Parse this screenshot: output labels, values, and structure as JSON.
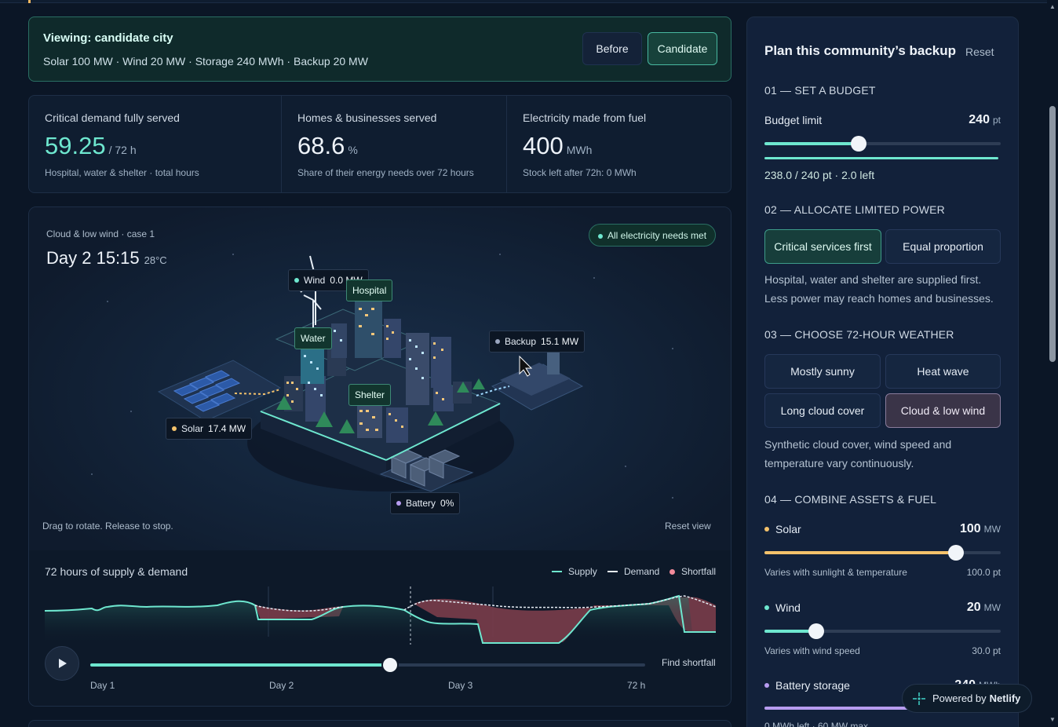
{
  "banner": {
    "title": "Viewing: candidate city",
    "summary": "Solar 100 MW · Wind 20 MW · Storage 240 MWh · Backup 20 MW",
    "before_label": "Before",
    "candidate_label": "Candidate"
  },
  "stats": [
    {
      "label": "Critical demand fully served",
      "value": "59.25",
      "unit": "/ 72 h",
      "note": "Hospital, water & shelter · total hours"
    },
    {
      "label": "Homes & businesses served",
      "value": "68.6",
      "unit": "%",
      "note": "Share of their energy needs over 72 hours"
    },
    {
      "label": "Electricity made from fuel",
      "value": "400",
      "unit": "MWh",
      "note": "Stock left after 72h: 0 MWh"
    }
  ],
  "scene": {
    "case_label": "Cloud & low wind · case 1",
    "day_time": "Day 2 15:15",
    "temperature": "28°C",
    "status_badge": "All electricity needs met",
    "drag_hint": "Drag to rotate. Release to stop.",
    "reset_view": "Reset view",
    "tags": {
      "wind": {
        "label": "Wind",
        "value": "0.0 MW"
      },
      "hospital": "Hospital",
      "water": "Water",
      "shelter": "Shelter",
      "backup": {
        "label": "Backup",
        "value": "15.1 MW"
      },
      "solar": {
        "label": "Solar",
        "value": "17.4 MW"
      },
      "battery": {
        "label": "Battery",
        "value": "0%"
      }
    }
  },
  "timeline": {
    "title": "72 hours of supply & demand",
    "legend": {
      "supply": "Supply",
      "demand": "Demand",
      "shortfall": "Shortfall"
    },
    "find_shortfall": "Find shortfall",
    "ticks": [
      "Day 1",
      "Day 2",
      "Day 3",
      "72 h"
    ],
    "progress": 0.54
  },
  "panel": {
    "title": "Plan this community’s backup",
    "reset": "Reset",
    "step1": "01 — SET A BUDGET",
    "budget_label": "Budget limit",
    "budget_value": "240",
    "budget_unit": "pt",
    "budget_slider": 0.4,
    "budget_status": "238.0 / 240 pt · 2.0 left",
    "step2": "02 — ALLOCATE LIMITED POWER",
    "alloc_options": [
      "Critical services first",
      "Equal proportion"
    ],
    "alloc_desc": "Hospital, water and shelter are supplied first. Less power may reach homes and businesses.",
    "step3": "03 — CHOOSE 72-HOUR WEATHER",
    "weather_options": [
      "Mostly sunny",
      "Heat wave",
      "Long cloud cover",
      "Cloud & low wind"
    ],
    "weather_desc": "Synthetic cloud cover, wind speed and temperature vary continuously.",
    "step4": "04 — COMBINE ASSETS & FUEL",
    "solar": {
      "label": "Solar",
      "value": "100",
      "unit": "MW",
      "note": "Varies with sunlight & temperature",
      "cost": "100.0 pt",
      "level": 0.81
    },
    "wind": {
      "label": "Wind",
      "value": "20",
      "unit": "MW",
      "note": "Varies with wind speed",
      "cost": "30.0 pt",
      "level": 0.22
    },
    "battery": {
      "label": "Battery storage",
      "value": "240",
      "unit": "MWh",
      "note": "0 MWh left · 60 MW max"
    }
  },
  "netlify": {
    "prefix": "Powered by",
    "brand": "Netlify"
  },
  "colors": {
    "teal": "#6ee7cf",
    "solar": "#f4c26b",
    "purple": "#b79cf0",
    "shortfall": "#f28b9b",
    "backup": "#9aa6c0"
  }
}
